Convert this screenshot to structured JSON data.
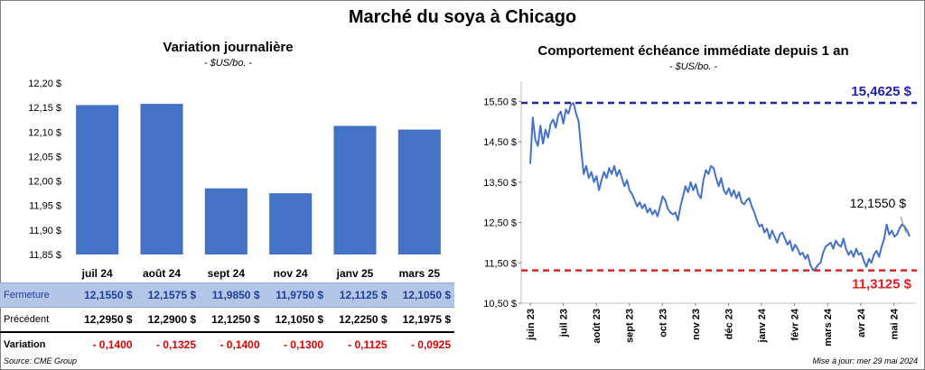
{
  "title": "Marché du soya à Chicago",
  "left_panel": {
    "title": "Variation journalière",
    "subtitle": "- $US/bo. -"
  },
  "right_panel": {
    "title": "Comportement échéance immédiate depuis 1 an",
    "subtitle": "- $US/bo. -"
  },
  "table": {
    "rows": [
      {
        "label": "Fermeture",
        "values": [
          "12,1550",
          "12,1575",
          "11,9850",
          "11,9750",
          "12,1125",
          "12,1050"
        ],
        "unit": "$"
      },
      {
        "label": "Précédent",
        "values": [
          "12,2950",
          "12,2900",
          "12,1250",
          "12,1050",
          "12,2250",
          "12,1975"
        ],
        "unit": "$"
      },
      {
        "label": "Variation",
        "values": [
          "- 0,1400",
          "- 0,1325",
          "- 0,1400",
          "- 0,1300",
          "- 0,1125",
          "- 0,0925"
        ],
        "unit": ""
      }
    ]
  },
  "footer": {
    "source": "Source: CME Group",
    "update": "Mise à jour: mer 29 mai 2024"
  },
  "colors": {
    "bar": "#4472c4",
    "line": "#4472c4",
    "max_line": "#2222aa",
    "min_line": "#e02020"
  },
  "chart_data": [
    {
      "type": "bar",
      "title": "Variation journalière",
      "subtitle": "- $US/bo. -",
      "categories": [
        "juil 24",
        "août 24",
        "sept 24",
        "nov 24",
        "janv 25",
        "mars 25"
      ],
      "values": [
        12.155,
        12.1575,
        11.985,
        11.975,
        12.1125,
        12.105
      ],
      "ylim": [
        11.85,
        12.2
      ],
      "yticks": [
        "12,20 $",
        "12,15 $",
        "12,10 $",
        "12,05 $",
        "12,00 $",
        "11,95 $",
        "11,90 $",
        "11,85 $"
      ],
      "ytick_values": [
        12.2,
        12.15,
        12.1,
        12.05,
        12.0,
        11.95,
        11.9,
        11.85
      ],
      "grid": false
    },
    {
      "type": "line",
      "title": "Comportement échéance immédiate depuis 1 an",
      "subtitle": "- $US/bo. -",
      "ylim": [
        10.5,
        16.0
      ],
      "yticks": [
        "15,50 $",
        "14,50 $",
        "13,50 $",
        "12,50 $",
        "11,50 $",
        "10,50 $"
      ],
      "ytick_values": [
        15.5,
        14.5,
        13.5,
        12.5,
        11.5,
        10.5
      ],
      "xticks": [
        "juin 23",
        "juil 23",
        "août 23",
        "sept 23",
        "oct 23",
        "nov 23",
        "déc 23",
        "janv 24",
        "févr 24",
        "mars 24",
        "avr 24",
        "mai 24"
      ],
      "max_value": 15.4625,
      "max_label": "15,4625 $",
      "min_value": 11.3125,
      "min_label": "11,3125 $",
      "last_value": 12.155,
      "last_label": "12,1550 $",
      "series": [
        {
          "values": [
            13.95,
            15.1,
            14.55,
            14.4,
            14.9,
            14.45,
            14.8,
            14.6,
            14.95,
            15.05,
            14.85,
            15.15,
            15.25,
            14.95,
            15.3,
            15.2,
            15.42,
            15.46,
            15.2,
            15.0,
            14.3,
            13.7,
            13.9,
            13.6,
            13.75,
            13.5,
            13.65,
            13.3,
            13.55,
            13.75,
            13.6,
            13.85,
            13.7,
            13.9,
            13.65,
            13.8,
            13.6,
            13.4,
            13.55,
            13.3,
            13.2,
            13.05,
            12.9,
            13.0,
            12.85,
            12.95,
            12.75,
            12.85,
            12.7,
            12.8,
            12.65,
            12.9,
            13.15,
            13.05,
            12.85,
            12.75,
            12.7,
            12.75,
            12.55,
            12.9,
            13.15,
            13.4,
            13.25,
            13.5,
            13.3,
            13.45,
            13.2,
            13.1,
            13.55,
            13.8,
            13.7,
            13.9,
            13.85,
            13.6,
            13.4,
            13.6,
            13.3,
            13.2,
            13.35,
            13.15,
            13.3,
            13.1,
            13.25,
            13.0,
            12.95,
            13.05,
            13.1,
            12.9,
            12.75,
            12.55,
            12.4,
            12.45,
            12.25,
            12.35,
            12.1,
            12.3,
            12.15,
            12.0,
            12.2,
            12.25,
            12.1,
            11.95,
            12.05,
            11.8,
            11.95,
            11.85,
            11.7,
            11.75,
            11.6,
            11.7,
            11.45,
            11.32,
            11.35,
            11.45,
            11.5,
            11.75,
            11.9,
            11.95,
            12.0,
            11.85,
            12.05,
            11.95,
            11.9,
            12.1,
            11.85,
            11.7,
            11.8,
            11.65,
            11.85,
            11.7,
            11.75,
            11.55,
            11.4,
            11.6,
            11.5,
            11.7,
            11.8,
            11.65,
            11.9,
            12.1,
            12.45,
            12.2,
            12.3,
            12.15,
            12.2,
            12.35,
            12.45,
            12.4,
            12.3,
            12.155
          ]
        }
      ]
    }
  ]
}
